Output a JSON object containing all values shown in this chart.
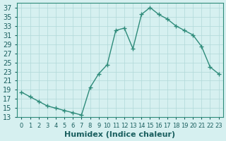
{
  "x": [
    0,
    1,
    2,
    3,
    4,
    5,
    6,
    7,
    8,
    9,
    10,
    11,
    12,
    13,
    14,
    15,
    16,
    17,
    18,
    19,
    20,
    21,
    22,
    23
  ],
  "y": [
    18.5,
    17.5,
    16.5,
    15.5,
    15.0,
    14.5,
    14.0,
    13.5,
    19.5,
    22.5,
    24.5,
    32.0,
    32.5,
    28.0,
    35.5,
    37.0,
    35.5,
    34.5,
    33.0,
    32.0,
    31.0,
    28.5,
    24.0,
    22.5
  ],
  "line_color": "#2e8b7a",
  "marker": "+",
  "bg_color": "#d6f0f0",
  "grid_color": "#b0d8d8",
  "axis_color": "#2e8b7a",
  "xlabel": "Humidex (Indice chaleur)",
  "xlim": [
    -0.5,
    23.5
  ],
  "ylim": [
    13,
    38
  ],
  "yticks": [
    13,
    15,
    17,
    19,
    21,
    23,
    25,
    27,
    29,
    31,
    33,
    35,
    37
  ],
  "font_color": "#1a5f5f",
  "fontsize": 7
}
